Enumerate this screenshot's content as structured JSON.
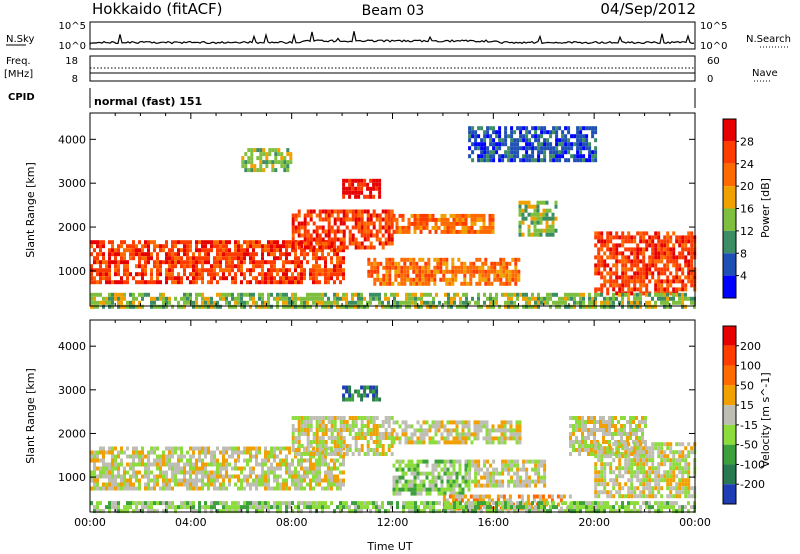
{
  "header": {
    "title_left": "Hokkaido (fitACF)",
    "title_center": "Beam 03",
    "title_right": "04/Sep/2012"
  },
  "param_panel": {
    "nsky_label": "N.Sky",
    "nsky_tick_top": "10^5",
    "nsky_tick_bottom": "10^0",
    "nsearch_label": "N.Search",
    "freq_label": "Freq.",
    "freq_unit": "[MHz]",
    "freq_tick_top": "18",
    "freq_tick_bottom": "8",
    "nave_tick_top": "60",
    "nave_tick_bottom": "0",
    "nave_label": "Nave",
    "cpid_label": "CPID",
    "cpid_text": "normal (fast) 151"
  },
  "chart_data": [
    {
      "type": "heatmap",
      "name": "power",
      "ylabel": "Slant Range [km]",
      "ylim": [
        200,
        4600
      ],
      "yticks": [
        1000,
        2000,
        3000,
        4000
      ],
      "xlim": [
        0,
        24
      ],
      "x_ticks_hours": [
        0,
        4,
        8,
        12,
        16,
        20,
        24
      ],
      "colorbar": {
        "label": "Power [dB]",
        "ticks": [
          "4",
          "8",
          "12",
          "16",
          "20",
          "24",
          "28"
        ],
        "colors": [
          "#0000ff",
          "#1e4fb4",
          "#3c8c64",
          "#7fbf3f",
          "#f0a000",
          "#ff6a00",
          "#ff3c00",
          "#e60000"
        ]
      },
      "regions": [
        {
          "x": [
            0,
            10
          ],
          "y": [
            700,
            1700
          ],
          "level": 6
        },
        {
          "x": [
            8,
            12
          ],
          "y": [
            1500,
            2400
          ],
          "level": 6
        },
        {
          "x": [
            10,
            11.5
          ],
          "y": [
            2700,
            3100
          ],
          "level": 7
        },
        {
          "x": [
            12,
            16
          ],
          "y": [
            1900,
            2300
          ],
          "level": 5
        },
        {
          "x": [
            11,
            17
          ],
          "y": [
            700,
            1300
          ],
          "level": 5
        },
        {
          "x": [
            17,
            18.5
          ],
          "y": [
            1800,
            2600
          ],
          "level": 3
        },
        {
          "x": [
            20,
            24
          ],
          "y": [
            500,
            1900
          ],
          "level": 6
        },
        {
          "x": [
            0,
            24
          ],
          "y": [
            200,
            500
          ],
          "level": 3
        },
        {
          "x": [
            15,
            20
          ],
          "y": [
            3500,
            4300
          ],
          "level": 1
        },
        {
          "x": [
            6,
            8
          ],
          "y": [
            3300,
            3800
          ],
          "level": 3
        }
      ]
    },
    {
      "type": "heatmap",
      "name": "velocity",
      "ylabel": "Slant Range [km]",
      "xlabel": "Time UT",
      "ylim": [
        200,
        4600
      ],
      "yticks": [
        1000,
        2000,
        3000,
        4000
      ],
      "xlim": [
        0,
        24
      ],
      "x_tick_labels": [
        "00:00",
        "04:00",
        "08:00",
        "12:00",
        "16:00",
        "20:00",
        "00:00"
      ],
      "colorbar": {
        "label": "Velocity [m s^-1]",
        "ticks": [
          "200",
          "100",
          "50",
          "15",
          "-15",
          "-50",
          "-100",
          "-200"
        ],
        "colors": [
          "#1e3cb4",
          "#287850",
          "#3ca03c",
          "#8cdc3c",
          "#bebeb4",
          "#f0a000",
          "#ff6a00",
          "#ff3c00",
          "#e60000"
        ]
      },
      "regions": [
        {
          "x": [
            0,
            10
          ],
          "y": [
            700,
            1700
          ],
          "level": 4
        },
        {
          "x": [
            8,
            12
          ],
          "y": [
            1500,
            2400
          ],
          "level": 4
        },
        {
          "x": [
            10,
            11.5
          ],
          "y": [
            2800,
            3100
          ],
          "level": 1
        },
        {
          "x": [
            12,
            15
          ],
          "y": [
            600,
            1400
          ],
          "level": 3
        },
        {
          "x": [
            15,
            18
          ],
          "y": [
            800,
            1400
          ],
          "level": 4
        },
        {
          "x": [
            12,
            17
          ],
          "y": [
            1800,
            2300
          ],
          "level": 4
        },
        {
          "x": [
            19,
            22
          ],
          "y": [
            1500,
            2400
          ],
          "level": 4
        },
        {
          "x": [
            20,
            24
          ],
          "y": [
            600,
            1800
          ],
          "level": 4
        },
        {
          "x": [
            14,
            19
          ],
          "y": [
            300,
            600
          ],
          "level": 5
        },
        {
          "x": [
            0,
            24
          ],
          "y": [
            200,
            450
          ],
          "level": 3
        }
      ]
    }
  ]
}
